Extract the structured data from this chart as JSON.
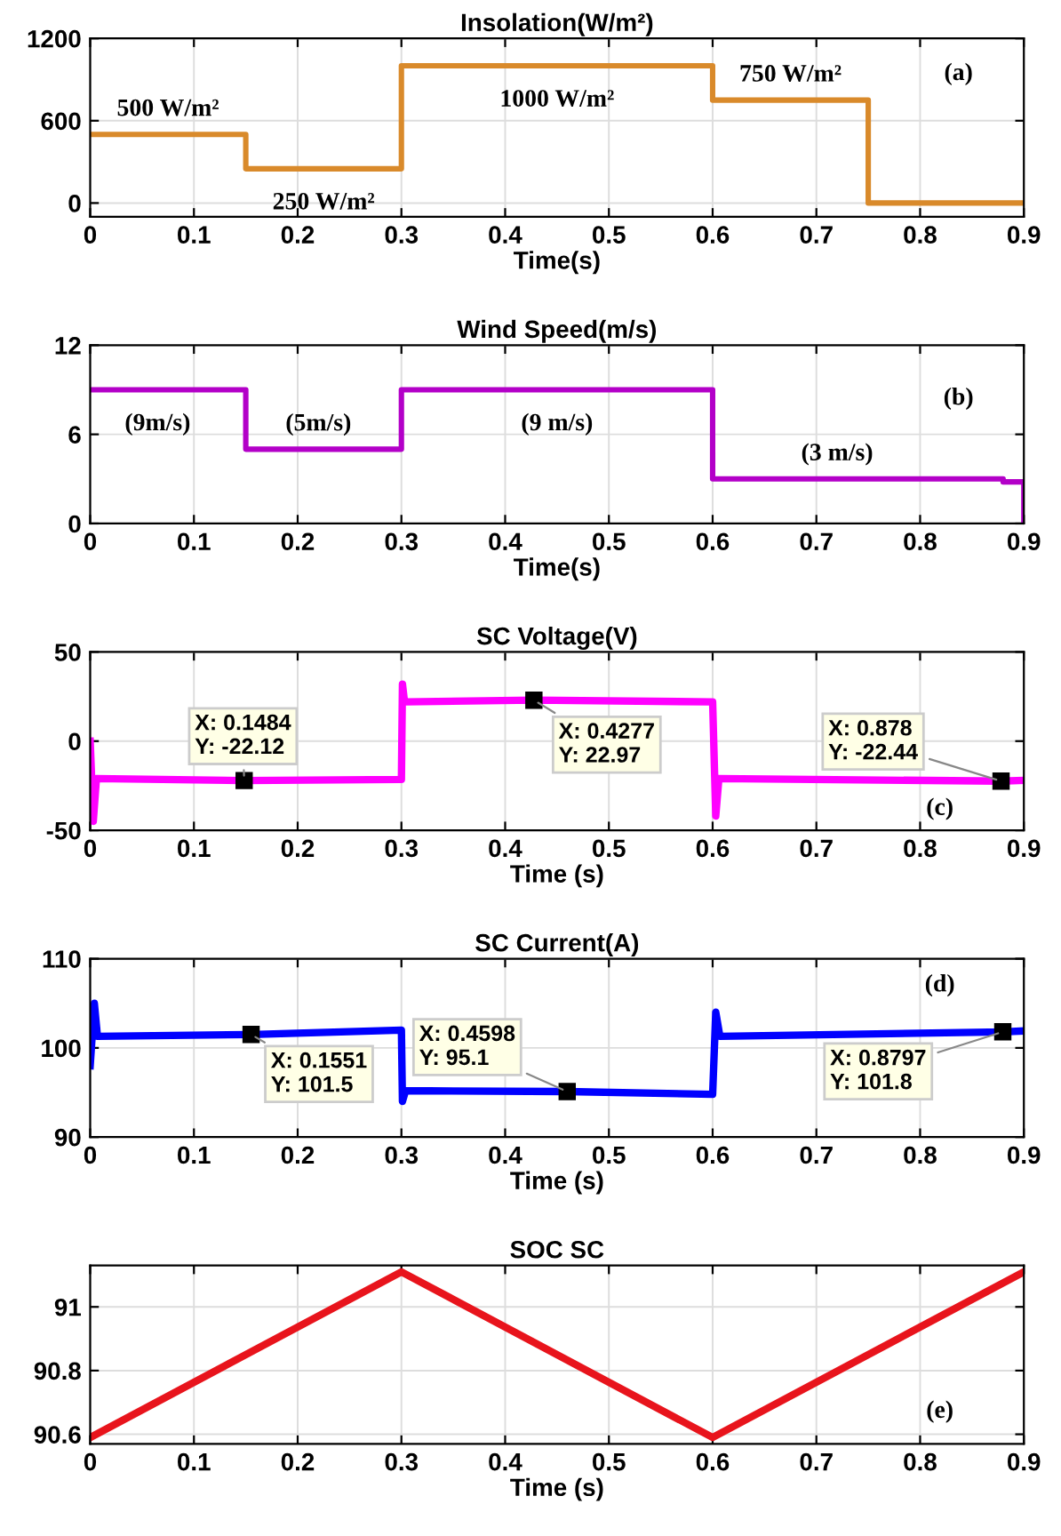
{
  "chart_data": [
    {
      "type": "step",
      "title": "Insolation(W/m²)",
      "xlabel": "Time(s)",
      "x": [
        0,
        0.15,
        0.3,
        0.6,
        0.75,
        0.9
      ],
      "series": [
        {
          "color": "#d98a2b",
          "values": [
            500,
            250,
            1000,
            750,
            0,
            0
          ]
        }
      ],
      "xlim": [
        0,
        0.9
      ],
      "xticks": [
        0,
        0.1,
        0.2,
        0.3,
        0.4,
        0.5,
        0.6,
        0.7,
        0.8,
        0.9
      ],
      "ylim": [
        -100,
        1200
      ],
      "yticks": [
        0,
        600,
        1200
      ],
      "grid": true,
      "annotations": [
        {
          "text": "500 W/m²",
          "x": 0.075,
          "y": 500
        },
        {
          "text": "250 W/m²",
          "x": 0.225,
          "y": 250
        },
        {
          "text": "1000 W/m²",
          "x": 0.45,
          "y": 1000
        },
        {
          "text": "750 W/m²",
          "x": 0.675,
          "y": 750
        },
        "(a)"
      ]
    },
    {
      "type": "step",
      "title": "Wind Speed(m/s)",
      "xlabel": "Time(s)",
      "x": [
        0,
        0.15,
        0.3,
        0.6,
        0.88,
        0.9
      ],
      "series": [
        {
          "color": "#b300c8",
          "values": [
            9,
            5,
            9,
            3,
            2.8,
            0
          ]
        }
      ],
      "xlim": [
        0,
        0.9
      ],
      "xticks": [
        0,
        0.1,
        0.2,
        0.3,
        0.4,
        0.5,
        0.6,
        0.7,
        0.8,
        0.9
      ],
      "ylim": [
        0,
        12
      ],
      "yticks": [
        0,
        6,
        12
      ],
      "grid": true,
      "annotations": [
        {
          "text": "(9m/s)",
          "x": 0.065,
          "y": 9
        },
        {
          "text": "(5m/s)",
          "x": 0.22,
          "y": 5
        },
        {
          "text": "(9 m/s)",
          "x": 0.45,
          "y": 9
        },
        {
          "text": "(3 m/s)",
          "x": 0.72,
          "y": 3
        },
        "(b)"
      ]
    },
    {
      "type": "line",
      "title": "SC Voltage(V)",
      "xlabel": "Time (s)",
      "x": [
        0,
        0.003,
        0.006,
        0.1484,
        0.3,
        0.301,
        0.303,
        0.4277,
        0.6,
        0.603,
        0.606,
        0.878,
        0.9
      ],
      "series": [
        {
          "color": "#ff00ff",
          "values": [
            0,
            -45,
            -21,
            -22.12,
            -21.5,
            32,
            22,
            22.97,
            22,
            -42,
            -21,
            -22.44,
            -22
          ]
        }
      ],
      "xlim": [
        0,
        0.9
      ],
      "xticks": [
        0,
        0.1,
        0.2,
        0.3,
        0.4,
        0.5,
        0.6,
        0.7,
        0.8,
        0.9
      ],
      "ylim": [
        -50,
        50
      ],
      "yticks": [
        -50,
        0,
        50
      ],
      "grid": true,
      "annotations": [
        {
          "text": "X: 0.1484\nY: -22.12",
          "x": 0.1484,
          "y": -22.12
        },
        {
          "text": "X: 0.4277\nY: 22.97",
          "x": 0.4277,
          "y": 22.97
        },
        {
          "text": "X: 0.878\nY: -22.44",
          "x": 0.878,
          "y": -22.44
        },
        "(c)"
      ]
    },
    {
      "type": "line",
      "title": "SC Current(A)",
      "xlabel": "Time (s)",
      "x": [
        0,
        0.004,
        0.007,
        0.1551,
        0.3,
        0.301,
        0.304,
        0.4598,
        0.6,
        0.603,
        0.607,
        0.8797,
        0.9
      ],
      "series": [
        {
          "color": "#0000ff",
          "values": [
            98,
            105,
            101.3,
            101.5,
            102,
            94,
            95.2,
            95.1,
            94.8,
            104,
            101.3,
            101.8,
            101.9
          ]
        }
      ],
      "xlim": [
        0,
        0.9
      ],
      "xticks": [
        0,
        0.1,
        0.2,
        0.3,
        0.4,
        0.5,
        0.6,
        0.7,
        0.8,
        0.9
      ],
      "ylim": [
        90,
        110
      ],
      "yticks": [
        90,
        100,
        110
      ],
      "grid": true,
      "annotations": [
        {
          "text": "X: 0.1551\nY: 101.5",
          "x": 0.1551,
          "y": 101.5
        },
        {
          "text": "X: 0.4598\nY: 95.1",
          "x": 0.4598,
          "y": 95.1
        },
        {
          "text": "X: 0.8797\nY: 101.8",
          "x": 0.8797,
          "y": 101.8
        },
        "(d)"
      ]
    },
    {
      "type": "line",
      "title": "SOC SC",
      "xlabel": "Time (s)",
      "x": [
        0,
        0.3,
        0.6,
        0.9
      ],
      "series": [
        {
          "color": "#e8141c",
          "values": [
            90.59,
            91.11,
            90.59,
            91.11
          ]
        }
      ],
      "xlim": [
        0,
        0.9
      ],
      "xticks": [
        0,
        0.1,
        0.2,
        0.3,
        0.4,
        0.5,
        0.6,
        0.7,
        0.8,
        0.9
      ],
      "ylim": [
        90.57,
        91.13
      ],
      "yticks": [
        90.6,
        90.8,
        91
      ],
      "grid": true,
      "annotations": [
        "(e)"
      ]
    }
  ]
}
